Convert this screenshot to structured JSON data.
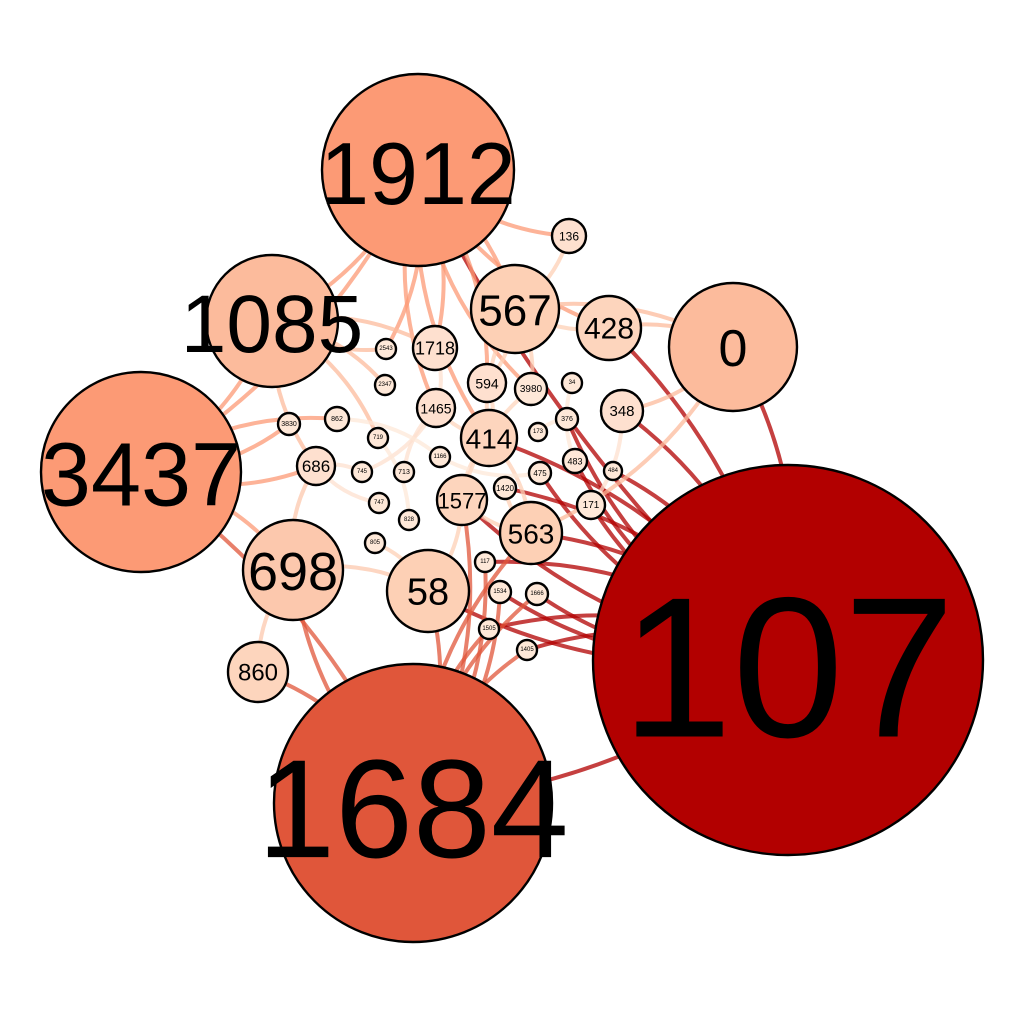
{
  "graph": {
    "colors": {
      "background": "#ffffff",
      "node_stroke": "#000000",
      "label": "#000000",
      "scale": [
        "#fee8d8",
        "#fdd0b5",
        "#fcbb9c",
        "#fc9a75",
        "#e0563a",
        "#b20000"
      ]
    },
    "nodes": [
      {
        "id": "107",
        "label": "107",
        "color": "#b20000"
      },
      {
        "id": "1684",
        "label": "1684",
        "color": "#e0563a"
      },
      {
        "id": "1912",
        "label": "1912",
        "color": "#fc9a75"
      },
      {
        "id": "3437",
        "label": "3437",
        "color": "#fc9a75"
      },
      {
        "id": "0",
        "label": "0",
        "color": "#fcbb9c"
      },
      {
        "id": "1085",
        "label": "1085",
        "color": "#fcbb9c"
      },
      {
        "id": "698",
        "label": "698",
        "color": "#fcc8ad"
      },
      {
        "id": "567",
        "label": "567",
        "color": "#fdd0b5"
      },
      {
        "id": "58",
        "label": "58",
        "color": "#fdd0b5"
      },
      {
        "id": "563",
        "label": "563",
        "color": "#fdd0b5"
      },
      {
        "id": "428",
        "label": "428",
        "color": "#fdd5bd"
      },
      {
        "id": "414",
        "label": "414",
        "color": "#fdd5bd"
      },
      {
        "id": "1577",
        "label": "1577",
        "color": "#fdd5bd"
      },
      {
        "id": "860",
        "label": "860",
        "color": "#fdd5bd"
      },
      {
        "id": "1718",
        "label": "1718",
        "color": "#fee0cf"
      },
      {
        "id": "686",
        "label": "686",
        "color": "#fee0cf"
      },
      {
        "id": "594",
        "label": "594",
        "color": "#fee0cf"
      },
      {
        "id": "1465",
        "label": "1465",
        "color": "#fee0cf"
      },
      {
        "id": "348",
        "label": "348",
        "color": "#fee0cf"
      },
      {
        "id": "136",
        "label": "136",
        "color": "#fee0cf"
      },
      {
        "id": "3980",
        "label": "3980",
        "color": "#fee8d8"
      },
      {
        "id": "376",
        "label": "376",
        "color": "#fee8d8"
      },
      {
        "id": "173",
        "label": "173",
        "color": "#fee8d8"
      },
      {
        "id": "483",
        "label": "483",
        "color": "#fee8d8"
      },
      {
        "id": "475",
        "label": "475",
        "color": "#fee8d8"
      },
      {
        "id": "1420",
        "label": "1420",
        "color": "#fee8d8"
      },
      {
        "id": "171",
        "label": "171",
        "color": "#fee8d8"
      },
      {
        "id": "34",
        "label": "34",
        "color": "#fee8d8"
      },
      {
        "id": "484",
        "label": "484",
        "color": "#fee8d8"
      },
      {
        "id": "2543",
        "label": "2543",
        "color": "#fee8d8"
      },
      {
        "id": "2347",
        "label": "2347",
        "color": "#fee8d8"
      },
      {
        "id": "3830",
        "label": "3830",
        "color": "#fee8d8"
      },
      {
        "id": "862",
        "label": "862",
        "color": "#fee8d8"
      },
      {
        "id": "719",
        "label": "719",
        "color": "#fee8d8"
      },
      {
        "id": "1166",
        "label": "1166",
        "color": "#fee8d8"
      },
      {
        "id": "745",
        "label": "745",
        "color": "#fee8d8"
      },
      {
        "id": "713",
        "label": "713",
        "color": "#fee8d8"
      },
      {
        "id": "747",
        "label": "747",
        "color": "#fee8d8"
      },
      {
        "id": "828",
        "label": "828",
        "color": "#fee8d8"
      },
      {
        "id": "805",
        "label": "805",
        "color": "#fee8d8"
      },
      {
        "id": "117",
        "label": "117",
        "color": "#fee8d8"
      },
      {
        "id": "1534",
        "label": "1534",
        "color": "#fee8d8"
      },
      {
        "id": "1666",
        "label": "1666",
        "color": "#fee8d8"
      },
      {
        "id": "1505",
        "label": "1505",
        "color": "#fee8d8"
      },
      {
        "id": "1405",
        "label": "1405",
        "color": "#fee8d8"
      }
    ],
    "edges": [
      [
        "107",
        "0"
      ],
      [
        "107",
        "1684"
      ],
      [
        "107",
        "348"
      ],
      [
        "107",
        "483"
      ],
      [
        "107",
        "484"
      ],
      [
        "107",
        "171"
      ],
      [
        "107",
        "563"
      ],
      [
        "107",
        "1666"
      ],
      [
        "107",
        "1405"
      ],
      [
        "107",
        "1534"
      ],
      [
        "107",
        "117"
      ],
      [
        "107",
        "58"
      ],
      [
        "107",
        "1505"
      ],
      [
        "107",
        "1577"
      ],
      [
        "107",
        "428"
      ],
      [
        "107",
        "376"
      ],
      [
        "107",
        "1420"
      ],
      [
        "107",
        "475"
      ],
      [
        "107",
        "414"
      ],
      [
        "107",
        "1912"
      ],
      [
        "1684",
        "860"
      ],
      [
        "1684",
        "698"
      ],
      [
        "1684",
        "58"
      ],
      [
        "1684",
        "563"
      ],
      [
        "1684",
        "1577"
      ],
      [
        "1684",
        "1505"
      ],
      [
        "1684",
        "1534"
      ],
      [
        "1684",
        "1405"
      ],
      [
        "1684",
        "117"
      ],
      [
        "1684",
        "1666"
      ],
      [
        "1684",
        "3437"
      ],
      [
        "1912",
        "567"
      ],
      [
        "1912",
        "136"
      ],
      [
        "1912",
        "1718"
      ],
      [
        "1912",
        "1465"
      ],
      [
        "1912",
        "594"
      ],
      [
        "1912",
        "414"
      ],
      [
        "1912",
        "2543"
      ],
      [
        "1912",
        "428"
      ],
      [
        "1912",
        "1085"
      ],
      [
        "1912",
        "3980"
      ],
      [
        "1912",
        "3437"
      ],
      [
        "3437",
        "686"
      ],
      [
        "3437",
        "698"
      ],
      [
        "3437",
        "3830"
      ],
      [
        "3437",
        "862"
      ],
      [
        "3437",
        "1085"
      ],
      [
        "1085",
        "2347"
      ],
      [
        "1085",
        "2543"
      ],
      [
        "1085",
        "1718"
      ],
      [
        "1085",
        "686"
      ],
      [
        "1085",
        "719"
      ],
      [
        "0",
        "428"
      ],
      [
        "0",
        "348"
      ],
      [
        "0",
        "567"
      ],
      [
        "0",
        "563"
      ],
      [
        "567",
        "428"
      ],
      [
        "567",
        "594"
      ],
      [
        "567",
        "414"
      ],
      [
        "567",
        "3980"
      ],
      [
        "567",
        "136"
      ],
      [
        "698",
        "58"
      ],
      [
        "698",
        "860"
      ],
      [
        "698",
        "686"
      ],
      [
        "414",
        "1577"
      ],
      [
        "414",
        "563"
      ],
      [
        "414",
        "594"
      ],
      [
        "414",
        "1465"
      ],
      [
        "1577",
        "563"
      ],
      [
        "1577",
        "58"
      ],
      [
        "1465",
        "1718"
      ],
      [
        "1465",
        "745"
      ],
      [
        "1465",
        "713"
      ],
      [
        "686",
        "745"
      ],
      [
        "686",
        "747"
      ],
      [
        "719",
        "828"
      ],
      [
        "1166",
        "475"
      ],
      [
        "805",
        "58"
      ],
      [
        "1420",
        "563"
      ],
      [
        "173",
        "376"
      ],
      [
        "34",
        "483"
      ],
      [
        "348",
        "171"
      ],
      [
        "3980",
        "1577"
      ],
      [
        "862",
        "1166"
      ]
    ]
  }
}
